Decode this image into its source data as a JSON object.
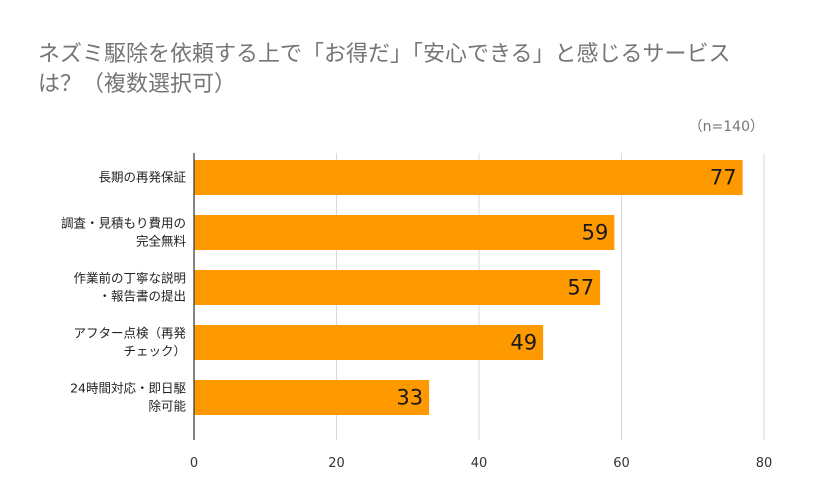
{
  "title_line1": "ネズミ駆除を依頼する上で「お得だ」「安心できる」と感じるサービス",
  "title_line2": "は？（複数選択可）",
  "note": "（n=140）",
  "chart_data": {
    "type": "bar",
    "orientation": "horizontal",
    "categories": [
      [
        "長期の再発保証"
      ],
      [
        "調査・見積もり費用の",
        "完全無料"
      ],
      [
        "作業前の丁寧な説明",
        "・報告書の提出"
      ],
      [
        "アフター点検（再発",
        "チェック）"
      ],
      [
        "24時間対応・即日駆",
        "除可能"
      ]
    ],
    "values": [
      77,
      59,
      57,
      49,
      33
    ],
    "xlim": [
      0,
      80
    ],
    "xticks": [
      0,
      20,
      40,
      60,
      80
    ],
    "xtick_labels": [
      "0",
      "20",
      "40",
      "60",
      "80"
    ],
    "bar_color": "#ff9900",
    "grid": true,
    "data_labels": true
  }
}
